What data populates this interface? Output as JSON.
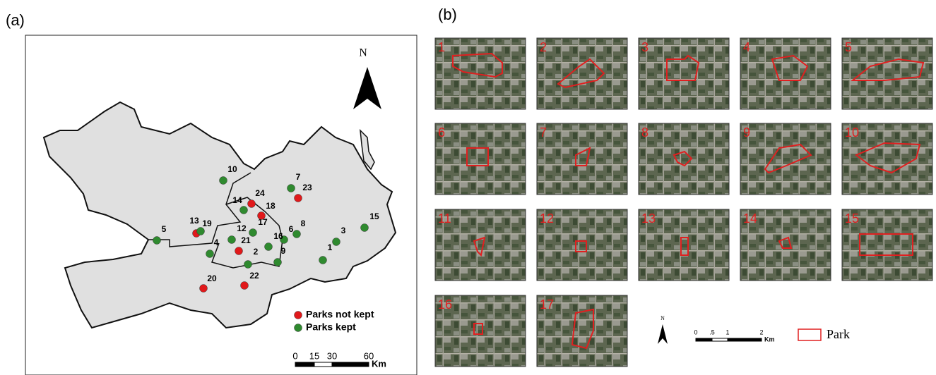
{
  "panel_a": {
    "label": "(a)",
    "north": "N",
    "points": [
      {
        "label": "1",
        "group": 1
      },
      {
        "label": "2",
        "group": 1
      },
      {
        "label": "3",
        "group": 1
      },
      {
        "label": "4",
        "group": 1
      },
      {
        "label": "5",
        "group": 1
      },
      {
        "label": "6",
        "group": 1
      },
      {
        "label": "7",
        "group": 1
      },
      {
        "label": "8",
        "group": 1
      },
      {
        "label": "9",
        "group": 1
      },
      {
        "label": "10",
        "group": 1
      },
      {
        "label": "12",
        "group": 1
      },
      {
        "label": "13",
        "group": 0
      },
      {
        "label": "14",
        "group": 1
      },
      {
        "label": "15",
        "group": 1
      },
      {
        "label": "16",
        "group": 1
      },
      {
        "label": "17",
        "group": 1
      },
      {
        "label": "18",
        "group": 0
      },
      {
        "label": "19",
        "group": 1
      },
      {
        "label": "20",
        "group": 0
      },
      {
        "label": "21",
        "group": 0
      },
      {
        "label": "22",
        "group": 0
      },
      {
        "label": "23",
        "group": 0
      },
      {
        "label": "24",
        "group": 0
      }
    ],
    "legend": [
      {
        "label": "Parks not kept",
        "color": "#e0191b"
      },
      {
        "label": "Parks kept",
        "color": "#2f8a2f"
      }
    ],
    "scale": {
      "ticks": [
        "0",
        "15",
        "30",
        "60"
      ],
      "unit": "Km"
    }
  },
  "panel_b": {
    "label": "(b)",
    "tiles": [
      "1",
      "2",
      "3",
      "4",
      "5",
      "6",
      "7",
      "8",
      "9",
      "10",
      "11",
      "12",
      "13",
      "14",
      "15",
      "16",
      "17"
    ],
    "north": "N",
    "scale": {
      "ticks": [
        "0",
        ".5",
        "1",
        "2"
      ],
      "unit": "Km"
    },
    "legend": "Park"
  }
}
